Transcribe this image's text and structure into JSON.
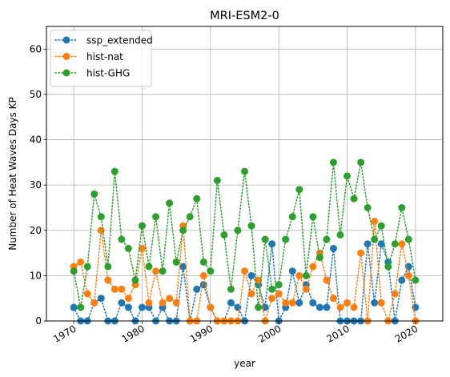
{
  "chart_data": {
    "type": "line",
    "title": "MRI-ESM2-0",
    "xlabel": "year",
    "ylabel": "Number of Heat Waves Days KP",
    "xlim": [
      1966,
      2024
    ],
    "ylim": [
      0,
      65
    ],
    "xticks": [
      1970,
      1980,
      1990,
      2000,
      2010,
      2020
    ],
    "yticks": [
      0,
      10,
      20,
      30,
      40,
      50,
      60
    ],
    "grid": true,
    "legend_position": "top-left",
    "x": [
      1970,
      1971,
      1972,
      1973,
      1974,
      1975,
      1976,
      1977,
      1978,
      1979,
      1980,
      1981,
      1982,
      1983,
      1984,
      1985,
      1986,
      1987,
      1988,
      1989,
      1990,
      1991,
      1992,
      1993,
      1994,
      1995,
      1996,
      1997,
      1998,
      1999,
      2000,
      2001,
      2002,
      2003,
      2004,
      2005,
      2006,
      2007,
      2008,
      2009,
      2010,
      2011,
      2012,
      2013,
      2014,
      2015,
      2016,
      2017,
      2018,
      2019,
      2020
    ],
    "series": [
      {
        "name": "ssp_extended",
        "color": "#1f77b4",
        "values": [
          3,
          0,
          0,
          4,
          5,
          0,
          0,
          4,
          3,
          0,
          3,
          3,
          0,
          3,
          0,
          0,
          12,
          0,
          7,
          8,
          3,
          0,
          0,
          4,
          3,
          0,
          10,
          8,
          3,
          17,
          0,
          3,
          11,
          4,
          8,
          4,
          3,
          3,
          16,
          0,
          0,
          0,
          0,
          17,
          4,
          17,
          13,
          0,
          9,
          12,
          3
        ]
      },
      {
        "name": "hist-nat",
        "color": "#ff7f0e",
        "values": [
          12,
          13,
          6,
          4,
          20,
          9,
          7,
          7,
          5,
          8,
          16,
          4,
          11,
          4,
          5,
          4,
          21,
          0,
          0,
          10,
          3,
          0,
          0,
          0,
          0,
          11,
          6,
          9,
          0,
          5,
          6,
          4,
          4,
          10,
          7,
          12,
          15,
          9,
          5,
          3,
          4,
          3,
          15,
          0,
          22,
          4,
          0,
          6,
          17,
          10,
          0
        ]
      },
      {
        "name": "hist-GHG",
        "color": "#2ca02c",
        "values": [
          11,
          3,
          12,
          28,
          23,
          12,
          33,
          18,
          16,
          9,
          21,
          12,
          23,
          11,
          26,
          13,
          20,
          23,
          27,
          13,
          11,
          31,
          19,
          7,
          20,
          33,
          21,
          3,
          18,
          7,
          8,
          18,
          23,
          29,
          10,
          23,
          14,
          18,
          35,
          19,
          32,
          27,
          35,
          25,
          18,
          21,
          12,
          17,
          25,
          18,
          9
        ]
      }
    ]
  }
}
